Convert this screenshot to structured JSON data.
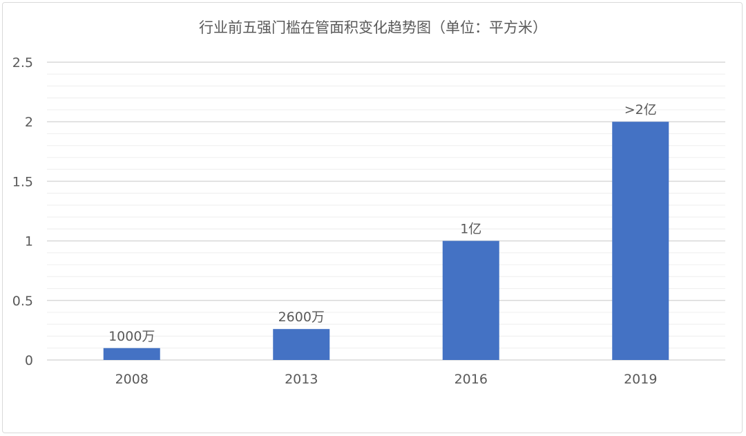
{
  "chart_data": {
    "type": "bar",
    "title": "行业前五强门槛在管面积变化趋势图（单位：平方米）",
    "categories": [
      "2008",
      "2013",
      "2016",
      "2019"
    ],
    "values": [
      0.1,
      0.26,
      1,
      2
    ],
    "data_labels": [
      "1000万",
      "2600万",
      "1亿",
      ">2亿"
    ],
    "xlabel": "",
    "ylabel": "",
    "ylim": [
      0,
      2.5
    ],
    "yticks": [
      "0",
      "0.5",
      "1",
      "1.5",
      "2",
      "2.5"
    ],
    "grid": true,
    "minor_grid_step": 0.1,
    "colors": {
      "bar": "#4472C4",
      "grid": "#e6e6e6",
      "text": "#595959"
    }
  }
}
